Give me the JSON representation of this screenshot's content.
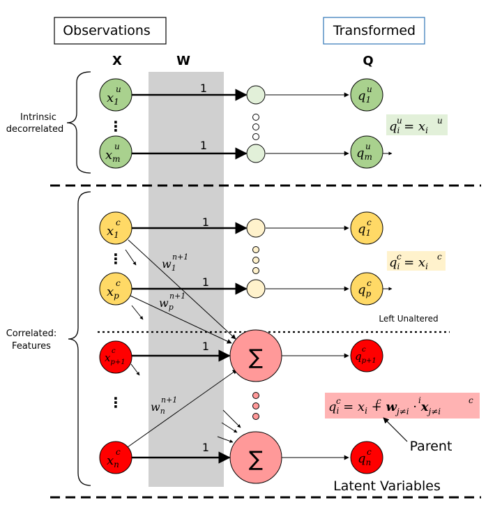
{
  "headers": {
    "observations": "Observations",
    "transformed": "Transformed",
    "col_x": "X",
    "col_w": "W",
    "col_q": "Q"
  },
  "side_labels": {
    "intrinsic_line1": "Intrinsic",
    "intrinsic_line2": "decorrelated",
    "correlated_line1": "Correlated:",
    "correlated_line2": "Features"
  },
  "nodes": {
    "x1u": {
      "base": "x",
      "sub": "1",
      "sup": "u"
    },
    "xmu": {
      "base": "x",
      "sub": "m",
      "sup": "u"
    },
    "q1u": {
      "base": "q",
      "sub": "1",
      "sup": "u"
    },
    "qmu": {
      "base": "q",
      "sub": "m",
      "sup": "u"
    },
    "x1c": {
      "base": "x",
      "sub": "1",
      "sup": "c"
    },
    "xpc": {
      "base": "x",
      "sub": "p",
      "sup": "c"
    },
    "q1c": {
      "base": "q",
      "sub": "1",
      "sup": "c"
    },
    "qpc": {
      "base": "q",
      "sub": "p",
      "sup": "c"
    },
    "xp1c": {
      "base": "x",
      "sub": "p+1",
      "sup": "c"
    },
    "xnc": {
      "base": "x",
      "sub": "n",
      "sup": "c"
    },
    "qp1c": {
      "base": "q",
      "sub": "p+1",
      "sup": "c"
    },
    "qnc": {
      "base": "q",
      "sub": "n",
      "sup": "c"
    }
  },
  "weights": {
    "one": "1",
    "w1": {
      "base": "w",
      "sub": "1",
      "sup": "n+1"
    },
    "wp": {
      "base": "w",
      "sub": "p",
      "sup": "n+1"
    },
    "wn": {
      "base": "w",
      "sub": "n",
      "sup": "n+1"
    }
  },
  "sum_symbol": "∑",
  "vdots": "⋮",
  "equations": {
    "eq_u": {
      "lhs_base": "q",
      "lhs_sub": "i",
      "lhs_sup": "u",
      "rhs_base": "x",
      "rhs_sub": "i",
      "rhs_sup": "u"
    },
    "eq_c": {
      "lhs_base": "q",
      "lhs_sub": "i",
      "lhs_sup": "c",
      "rhs_base": "x",
      "rhs_sub": "i",
      "rhs_sup": "c"
    },
    "eq_latent": {
      "w_sub": "j≠i",
      "w_sup": "i",
      "x_sub": "j≠i",
      "x_sup": "c"
    }
  },
  "annotations": {
    "left_unaltered": "Left Unaltered",
    "parent": "Parent",
    "latent_variables": "Latent Variables"
  },
  "colors": {
    "green_fill": "#a9d18e",
    "green_light": "#e2f0d9",
    "yellow_fill": "#ffd966",
    "yellow_light": "#fff2cc",
    "red_fill": "#ff0000",
    "sum_fill": "#ff9999",
    "band_gray": "#d0d0d0",
    "eq_green_bg": "#e2f0d9",
    "eq_yellow_bg": "#fff2cc",
    "eq_red_bg": "#ffb3b3"
  }
}
